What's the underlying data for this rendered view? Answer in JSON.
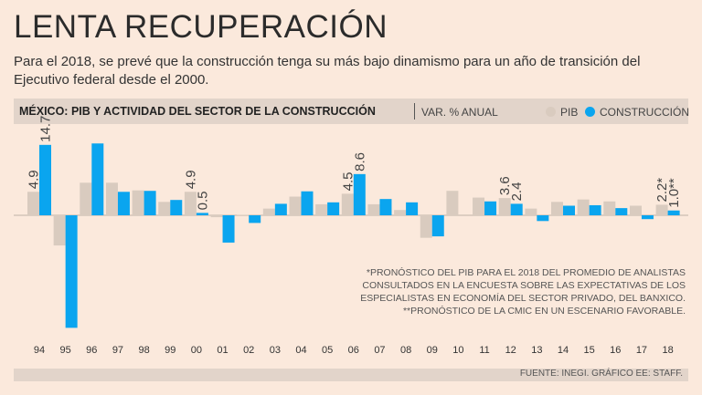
{
  "header": {
    "title": "LENTA RECUPERACIÓN",
    "subtitle": "Para el 2018, se prevé que la construcción tenga su más bajo dinamismo para un año de transición del Ejecutivo federal desde el 2000."
  },
  "chart_header": {
    "title": "MÉXICO: PIB Y ACTIVIDAD DEL SECTOR DE LA CONSTRUCCIÓN",
    "unit": "VAR. % ANUAL",
    "legend_pib": "PIB",
    "legend_construccion": "CONSTRUCCIÓN"
  },
  "colors": {
    "pib": "#d9cbbf",
    "construccion": "#0aa5ef"
  },
  "chart_data": {
    "type": "bar",
    "title": "MÉXICO: PIB Y ACTIVIDAD DEL SECTOR DE LA CONSTRUCCIÓN",
    "ylabel": "VAR. % ANUAL",
    "categories": [
      "94",
      "95",
      "96",
      "97",
      "98",
      "99",
      "00",
      "01",
      "02",
      "03",
      "04",
      "05",
      "06",
      "07",
      "08",
      "09",
      "10",
      "11",
      "12",
      "13",
      "14",
      "15",
      "16",
      "17",
      "18"
    ],
    "series": [
      {
        "name": "PIB",
        "values": [
          4.9,
          -6.3,
          6.8,
          6.8,
          5.2,
          2.8,
          4.9,
          -0.4,
          0.1,
          1.4,
          3.9,
          2.3,
          4.5,
          2.3,
          1.1,
          -4.7,
          5.1,
          3.7,
          3.6,
          1.4,
          2.8,
          3.3,
          2.9,
          2.0,
          2.2
        ]
      },
      {
        "name": "CONSTRUCCIÓN",
        "values": [
          14.7,
          -23.5,
          15.0,
          4.9,
          5.1,
          3.2,
          0.5,
          -5.7,
          -1.6,
          2.4,
          5.0,
          2.7,
          8.6,
          3.4,
          2.7,
          -4.4,
          0.0,
          2.9,
          2.4,
          -1.2,
          2.0,
          2.1,
          1.5,
          -0.8,
          1.0
        ]
      }
    ],
    "value_labels": [
      {
        "category": "94",
        "series": "PIB",
        "text": "4.9"
      },
      {
        "category": "94",
        "series": "CONSTRUCCIÓN",
        "text": "14.7"
      },
      {
        "category": "00",
        "series": "PIB",
        "text": "4.9"
      },
      {
        "category": "00",
        "series": "CONSTRUCCIÓN",
        "text": "0.5"
      },
      {
        "category": "06",
        "series": "PIB",
        "text": "4.5"
      },
      {
        "category": "06",
        "series": "CONSTRUCCIÓN",
        "text": "8.6"
      },
      {
        "category": "12",
        "series": "PIB",
        "text": "3.6"
      },
      {
        "category": "12",
        "series": "CONSTRUCCIÓN",
        "text": "2.4"
      },
      {
        "category": "18",
        "series": "PIB",
        "text": "2.2*"
      },
      {
        "category": "18",
        "series": "CONSTRUCCIÓN",
        "text": "1.0**"
      }
    ],
    "ylim": [
      -24,
      15
    ],
    "grid": false,
    "legend": "top-right"
  },
  "notes": {
    "line1": "*PRONÓSTICO DEL PIB PARA EL 2018 DEL PROMEDIO DE ANALISTAS CONSULTADOS EN LA ENCUESTA SOBRE LAS EXPECTATIVAS DE LOS ESPECIALISTAS EN ECONOMÍA DEL SECTOR PRIVADO, DEL BANXICO.",
    "line2": "**PRONÓSTICO DE LA CMIC EN UN ESCENARIO FAVORABLE."
  },
  "footer": {
    "source": "FUENTE: INEGI. GRÁFICO EE: STAFF."
  }
}
